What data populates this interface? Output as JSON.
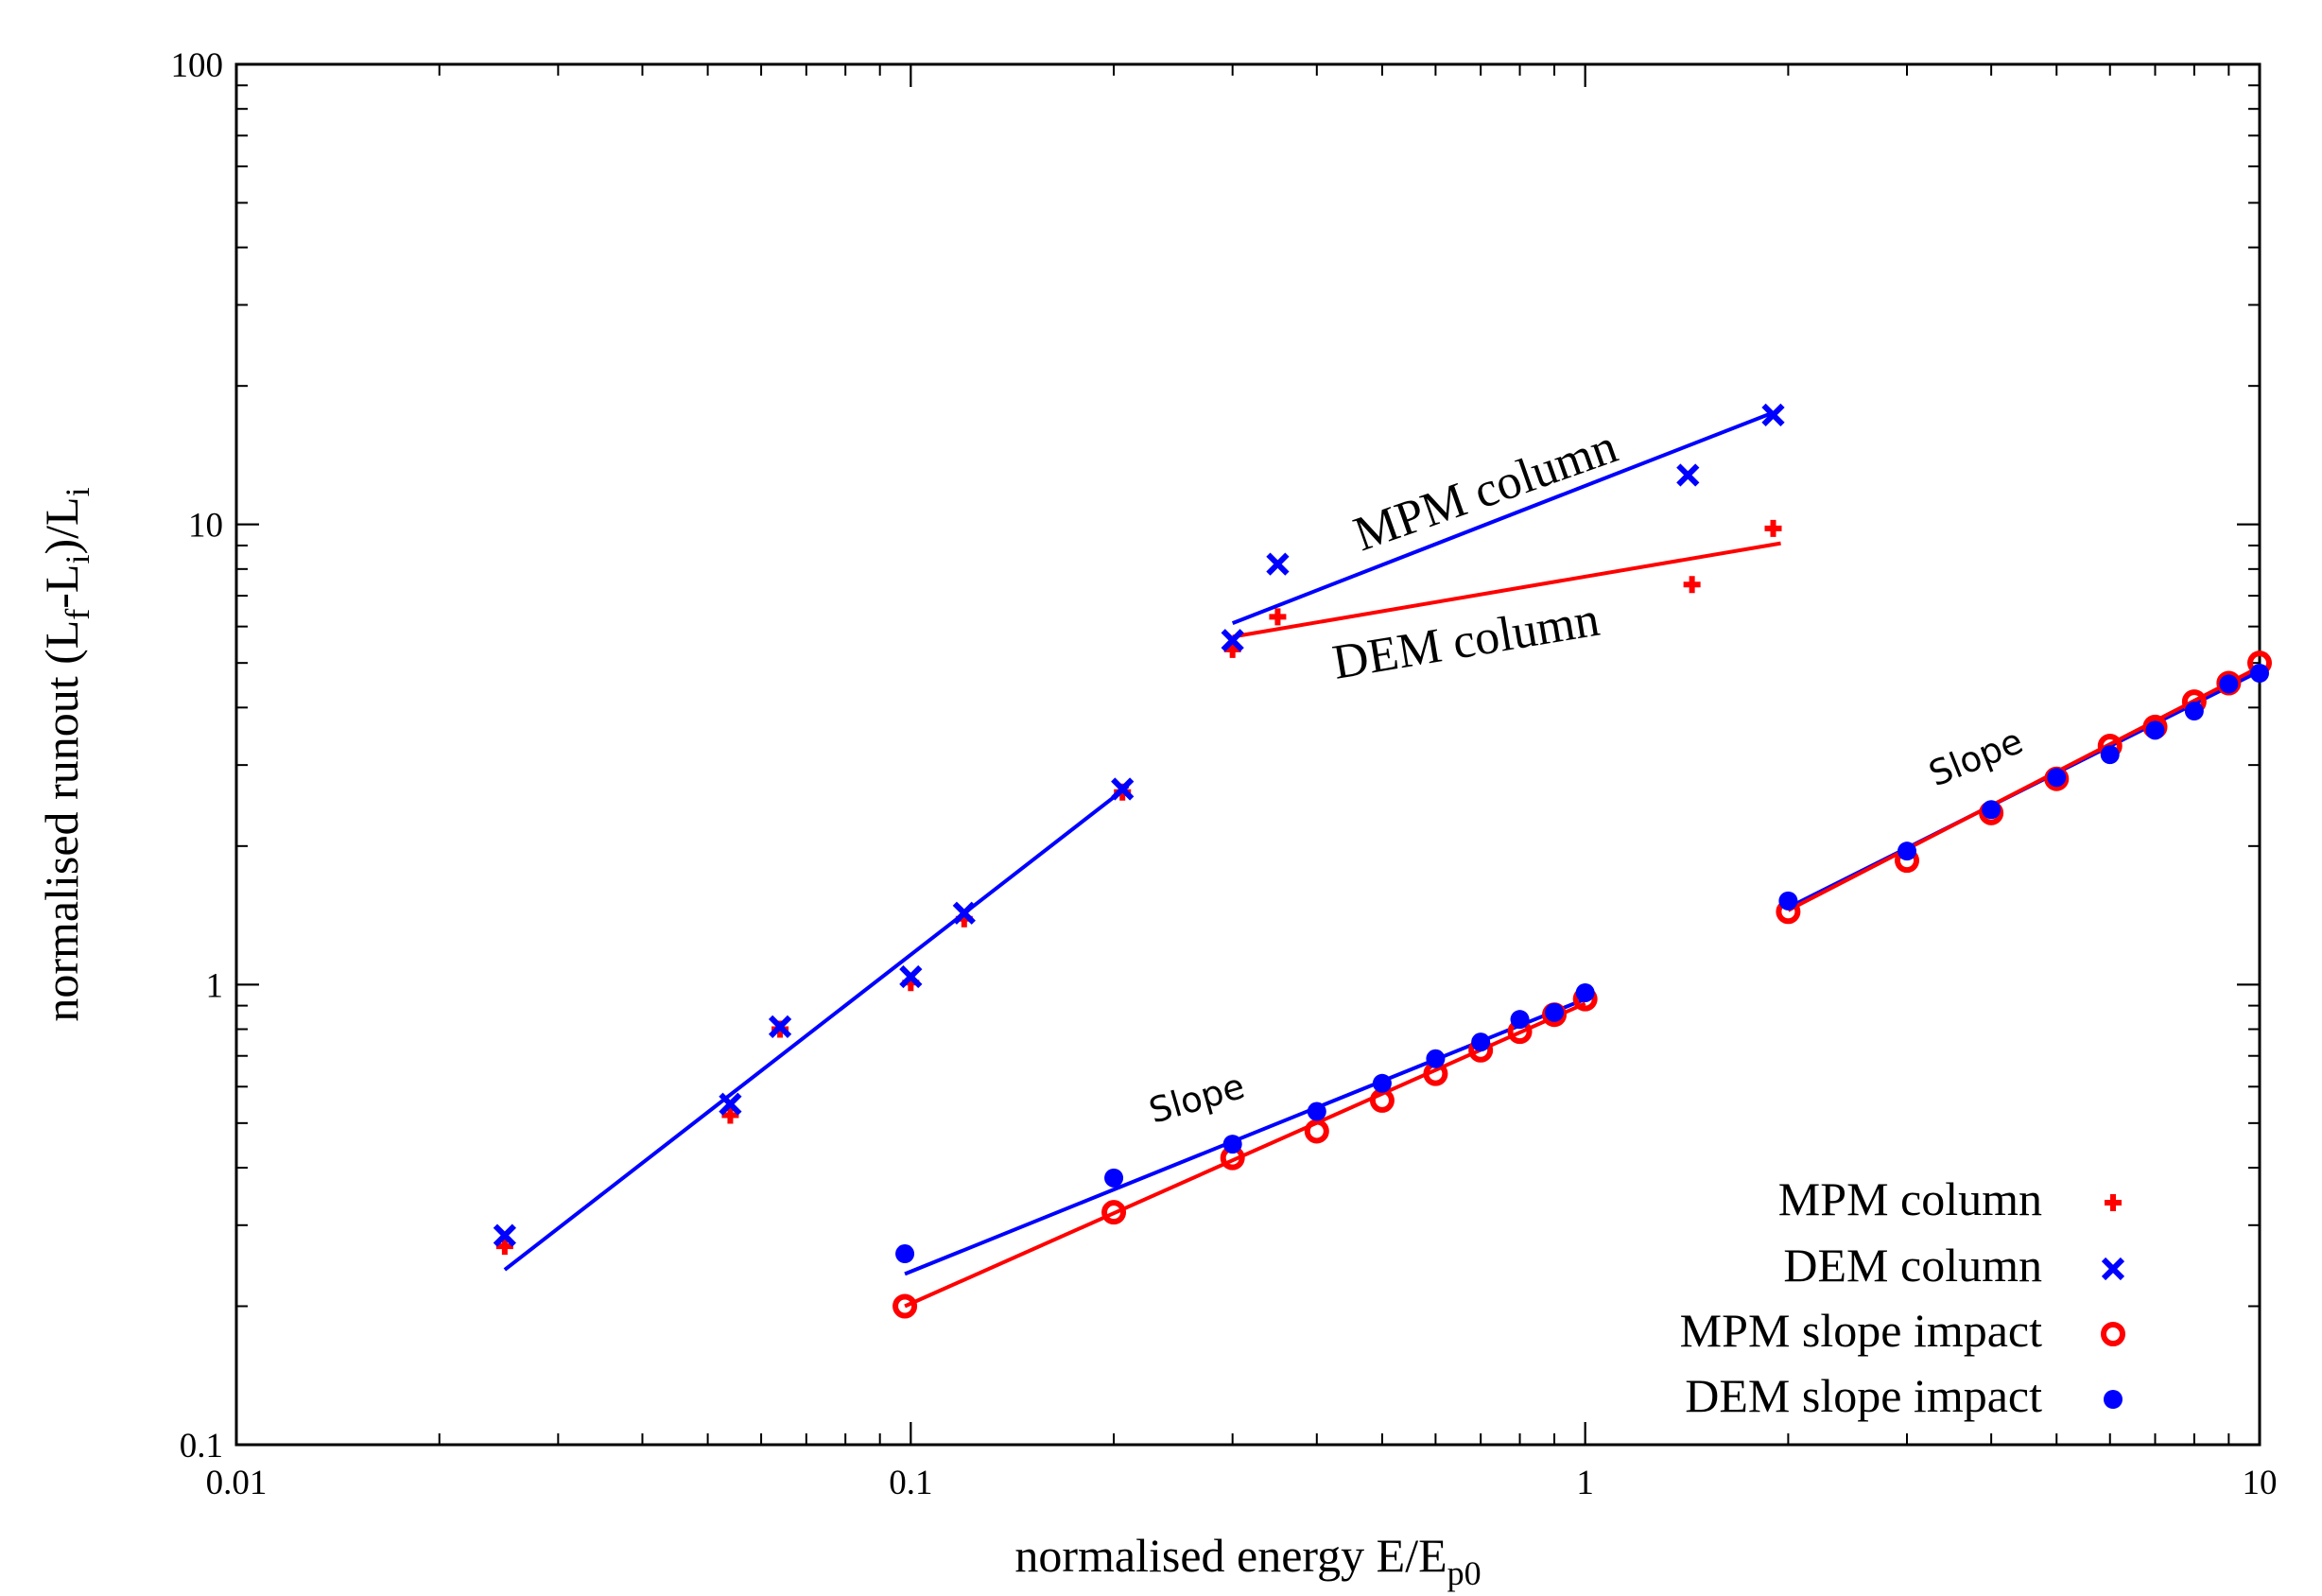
{
  "chart_data": {
    "type": "scatter",
    "x_scale": "log",
    "y_scale": "log",
    "xlim": [
      0.01,
      10
    ],
    "ylim": [
      0.1,
      100
    ],
    "xlabel": "normalised energy E/E",
    "xlabel_sub": "p0",
    "ylabel": {
      "p1": "normalised runout (L",
      "s1": "f",
      "p2": "-L",
      "s2": "i",
      "p3": ")/L",
      "s3": "i"
    },
    "x_ticks": [
      {
        "value": 0.01,
        "label": "0.01"
      },
      {
        "value": 0.1,
        "label": "0.1"
      },
      {
        "value": 1,
        "label": "1"
      },
      {
        "value": 10,
        "label": "10"
      }
    ],
    "y_ticks": [
      {
        "value": 0.1,
        "label": "0.1"
      },
      {
        "value": 1,
        "label": "1"
      },
      {
        "value": 10,
        "label": "10"
      },
      {
        "value": 100,
        "label": "100"
      }
    ],
    "grid": false,
    "legend_position": "bottom-right",
    "colors": {
      "red": "#ff0000",
      "blue": "#0000ff"
    },
    "series": [
      {
        "name": "MPM column",
        "marker": "plus",
        "color": "#ff0000",
        "points": [
          [
            0.025,
            0.27
          ],
          [
            0.054,
            0.52
          ],
          [
            0.064,
            0.8
          ],
          [
            0.1,
            1.01
          ],
          [
            0.12,
            1.39
          ],
          [
            0.206,
            2.62
          ],
          [
            0.3,
            5.35
          ],
          [
            0.35,
            6.3
          ],
          [
            1.44,
            7.4
          ],
          [
            1.9,
            9.8
          ]
        ]
      },
      {
        "name": "DEM column",
        "marker": "cross",
        "color": "#0000ff",
        "points": [
          [
            0.025,
            0.285
          ],
          [
            0.054,
            0.55
          ],
          [
            0.064,
            0.81
          ],
          [
            0.1,
            1.04
          ],
          [
            0.12,
            1.43
          ],
          [
            0.206,
            2.66
          ],
          [
            0.3,
            5.6
          ],
          [
            0.35,
            8.2
          ],
          [
            1.42,
            12.8
          ],
          [
            1.9,
            17.3
          ]
        ]
      },
      {
        "name": "MPM slope impact",
        "marker": "ring",
        "color": "#ff0000",
        "points": [
          [
            0.098,
            0.2
          ],
          [
            0.2,
            0.32
          ],
          [
            0.3,
            0.42
          ],
          [
            0.4,
            0.48
          ],
          [
            0.5,
            0.56
          ],
          [
            0.6,
            0.64
          ],
          [
            0.7,
            0.72
          ],
          [
            0.8,
            0.79
          ],
          [
            0.9,
            0.86
          ],
          [
            1.0,
            0.93
          ],
          [
            2.0,
            1.44
          ],
          [
            3.0,
            1.86
          ],
          [
            4.0,
            2.36
          ],
          [
            5.0,
            2.8
          ],
          [
            6.0,
            3.3
          ],
          [
            7.0,
            3.63
          ],
          [
            8.0,
            4.12
          ],
          [
            9.0,
            4.52
          ],
          [
            10.0,
            5.0
          ]
        ]
      },
      {
        "name": "DEM slope impact",
        "marker": "dot",
        "color": "#0000ff",
        "points": [
          [
            0.098,
            0.26
          ],
          [
            0.2,
            0.38
          ],
          [
            0.3,
            0.45
          ],
          [
            0.4,
            0.53
          ],
          [
            0.5,
            0.61
          ],
          [
            0.6,
            0.69
          ],
          [
            0.7,
            0.75
          ],
          [
            0.8,
            0.84
          ],
          [
            0.9,
            0.87
          ],
          [
            1.0,
            0.96
          ],
          [
            2.0,
            1.52
          ],
          [
            3.0,
            1.95
          ],
          [
            4.0,
            2.4
          ],
          [
            5.0,
            2.82
          ],
          [
            6.0,
            3.16
          ],
          [
            7.0,
            3.57
          ],
          [
            8.0,
            3.93
          ],
          [
            9.0,
            4.5
          ],
          [
            10.0,
            4.75
          ]
        ]
      }
    ],
    "fit_lines": [
      {
        "color": "#0000ff",
        "from": [
          0.025,
          0.24
        ],
        "to": [
          0.21,
          2.7
        ]
      },
      {
        "color": "#0000ff",
        "from": [
          0.3,
          6.1
        ],
        "to": [
          1.9,
          17.5
        ]
      },
      {
        "color": "#ff0000",
        "from": [
          0.3,
          5.7
        ],
        "to": [
          1.95,
          9.1
        ]
      },
      {
        "color": "#0000ff",
        "from": [
          0.098,
          0.235
        ],
        "to": [
          1.0,
          0.93
        ]
      },
      {
        "color": "#ff0000",
        "from": [
          0.098,
          0.2
        ],
        "to": [
          1.0,
          0.91
        ]
      },
      {
        "color": "#0000ff",
        "from": [
          2.0,
          1.47
        ],
        "to": [
          10.0,
          4.8
        ]
      },
      {
        "color": "#ff0000",
        "from": [
          2.0,
          1.45
        ],
        "to": [
          10.0,
          4.9
        ]
      }
    ],
    "annotations": [
      {
        "text": "MPM column",
        "style": "serif"
      },
      {
        "text": "DEM column",
        "style": "serif"
      },
      {
        "text": "Slope",
        "style": "sans"
      },
      {
        "text": "Slope",
        "style": "sans"
      }
    ]
  }
}
